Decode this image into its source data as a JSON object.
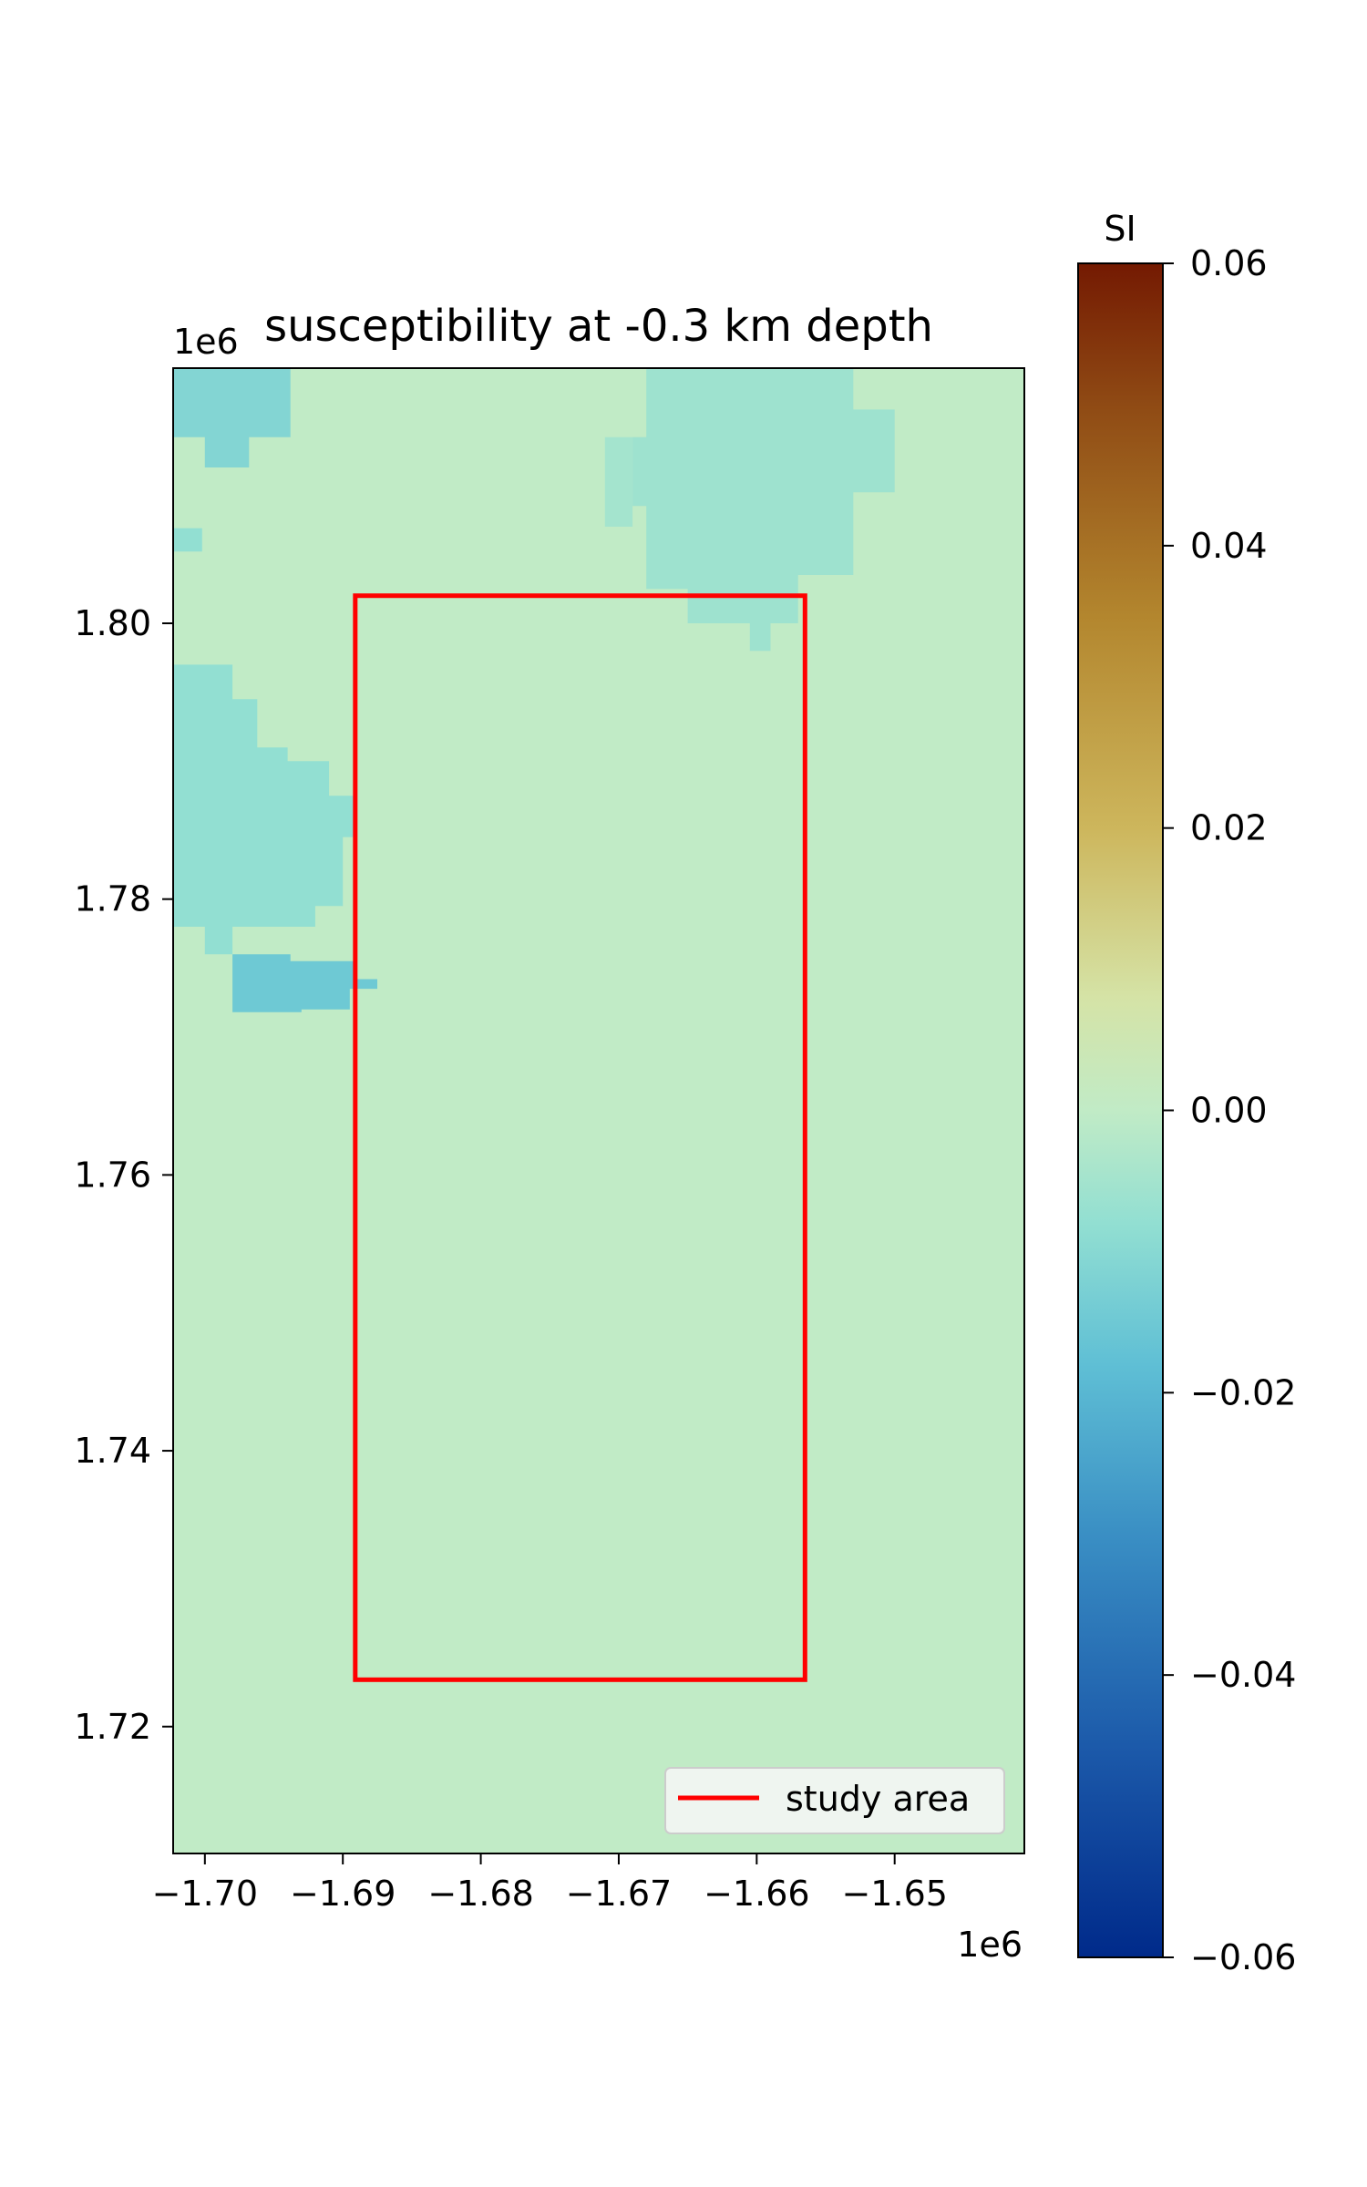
{
  "chart_data": [
    {
      "type": "heatmap",
      "title": "susceptibility at -0.3 km depth",
      "xlabel": "",
      "ylabel": "",
      "x_offset_label": "1e6",
      "y_offset_label": "1e6",
      "xlim": [
        -1.7023,
        -1.6406
      ],
      "ylim": [
        1.7108,
        1.8185
      ],
      "x_ticks": [
        -1.7,
        -1.69,
        -1.68,
        -1.67,
        -1.66,
        -1.65
      ],
      "x_tick_labels": [
        "−1.70",
        "−1.69",
        "−1.68",
        "−1.67",
        "−1.66",
        "−1.65"
      ],
      "y_ticks": [
        1.72,
        1.74,
        1.76,
        1.78,
        1.8
      ],
      "y_tick_labels": [
        "1.72",
        "1.74",
        "1.76",
        "1.78",
        "1.80"
      ],
      "grid": false,
      "background_value": 0.0,
      "anomalies": [
        {
          "polygon": [
            [
              -1.7023,
              1.8185
            ],
            [
              -1.6938,
              1.8185
            ],
            [
              -1.6938,
              1.8135
            ],
            [
              -1.6968,
              1.8135
            ],
            [
              -1.6968,
              1.8113
            ],
            [
              -1.7,
              1.8113
            ],
            [
              -1.7,
              1.8135
            ],
            [
              -1.7023,
              1.8135
            ]
          ],
          "value": -0.011
        },
        {
          "polygon": [
            [
              -1.7023,
              1.8069
            ],
            [
              -1.7002,
              1.8069
            ],
            [
              -1.7002,
              1.8052
            ],
            [
              -1.7023,
              1.8052
            ]
          ],
          "value": -0.008
        },
        {
          "polygon": [
            [
              -1.7023,
              1.797
            ],
            [
              -1.698,
              1.797
            ],
            [
              -1.698,
              1.7945
            ],
            [
              -1.6962,
              1.7945
            ],
            [
              -1.6962,
              1.791
            ],
            [
              -1.694,
              1.791
            ],
            [
              -1.694,
              1.79
            ],
            [
              -1.691,
              1.79
            ],
            [
              -1.691,
              1.7875
            ],
            [
              -1.689,
              1.7875
            ],
            [
              -1.689,
              1.7845
            ],
            [
              -1.69,
              1.7845
            ],
            [
              -1.69,
              1.7795
            ],
            [
              -1.692,
              1.7795
            ],
            [
              -1.692,
              1.778
            ],
            [
              -1.698,
              1.778
            ],
            [
              -1.698,
              1.776
            ],
            [
              -1.7,
              1.776
            ],
            [
              -1.7,
              1.778
            ],
            [
              -1.7023,
              1.778
            ]
          ],
          "value": -0.008
        },
        {
          "polygon": [
            [
              -1.698,
              1.776
            ],
            [
              -1.6938,
              1.776
            ],
            [
              -1.6938,
              1.7755
            ],
            [
              -1.689,
              1.7755
            ],
            [
              -1.689,
              1.7742
            ],
            [
              -1.6875,
              1.7742
            ],
            [
              -1.6875,
              1.7735
            ],
            [
              -1.6895,
              1.7735
            ],
            [
              -1.6895,
              1.772
            ],
            [
              -1.693,
              1.772
            ],
            [
              -1.693,
              1.7718
            ],
            [
              -1.698,
              1.7718
            ]
          ],
          "value": -0.015
        },
        {
          "polygon": [
            [
              -1.668,
              1.8185
            ],
            [
              -1.653,
              1.8185
            ],
            [
              -1.653,
              1.8155
            ],
            [
              -1.65,
              1.8155
            ],
            [
              -1.65,
              1.8095
            ],
            [
              -1.653,
              1.8095
            ],
            [
              -1.653,
              1.8035
            ],
            [
              -1.657,
              1.8035
            ],
            [
              -1.657,
              1.8
            ],
            [
              -1.659,
              1.8
            ],
            [
              -1.659,
              1.798
            ],
            [
              -1.6605,
              1.798
            ],
            [
              -1.6605,
              1.8
            ],
            [
              -1.665,
              1.8
            ],
            [
              -1.665,
              1.8025
            ],
            [
              -1.668,
              1.8025
            ],
            [
              -1.668,
              1.8085
            ],
            [
              -1.669,
              1.8085
            ],
            [
              -1.669,
              1.8135
            ],
            [
              -1.668,
              1.8135
            ]
          ],
          "value": -0.006
        },
        {
          "polygon": [
            [
              -1.671,
              1.8135
            ],
            [
              -1.669,
              1.8135
            ],
            [
              -1.669,
              1.807
            ],
            [
              -1.671,
              1.807
            ]
          ],
          "value": -0.005
        }
      ],
      "overlay": {
        "type": "rectangle",
        "label": "study area",
        "color": "#ff0000",
        "x0": -1.6891,
        "x1": -1.6565,
        "y0": 1.7234,
        "y1": 1.802
      },
      "legend": {
        "position": "bottom-right",
        "entries": [
          "study area"
        ]
      },
      "colorbar": {
        "label": "SI",
        "vmin": -0.06,
        "vmax": 0.06,
        "ticks": [
          -0.06,
          -0.04,
          -0.02,
          0.0,
          0.02,
          0.04,
          0.06
        ],
        "tick_labels": [
          "−0.06",
          "−0.04",
          "−0.02",
          "0.00",
          "0.02",
          "0.04",
          "0.06"
        ],
        "colormap_stops": [
          {
            "v": -0.06,
            "color": "#002a8a"
          },
          {
            "v": -0.045,
            "color": "#1c5aaa"
          },
          {
            "v": -0.03,
            "color": "#3a8fc4"
          },
          {
            "v": -0.018,
            "color": "#5fbfd5"
          },
          {
            "v": -0.008,
            "color": "#92dfd2"
          },
          {
            "v": 0.0,
            "color": "#c1ebc6"
          },
          {
            "v": 0.008,
            "color": "#d5e3a6"
          },
          {
            "v": 0.02,
            "color": "#cdb65c"
          },
          {
            "v": 0.035,
            "color": "#b3862e"
          },
          {
            "v": 0.05,
            "color": "#8f4a14"
          },
          {
            "v": 0.06,
            "color": "#741a02"
          }
        ]
      }
    }
  ]
}
